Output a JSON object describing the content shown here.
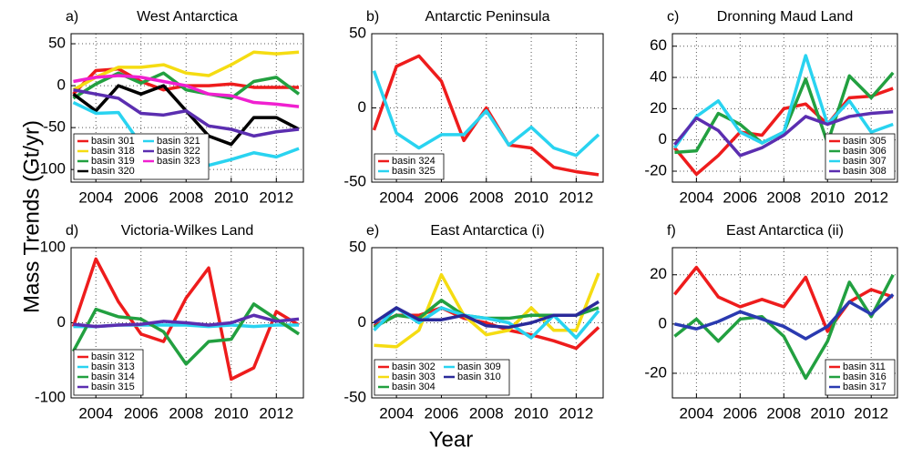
{
  "figure": {
    "ylabel": "Mass Trends (Gt/yr)",
    "xlabel": "Year"
  },
  "chart_data": [
    {
      "type": "line",
      "label": "a)",
      "title": "West Antarctica",
      "x": [
        2003,
        2004,
        2005,
        2006,
        2007,
        2008,
        2009,
        2010,
        2011,
        2012,
        2013
      ],
      "xlim": [
        2002.9,
        2013.2
      ],
      "xticks": [
        2004,
        2006,
        2008,
        2010,
        2012
      ],
      "ylim": [
        -115,
        62
      ],
      "yticks": [
        50,
        0,
        -50,
        -100
      ],
      "grid": true,
      "legend": "lower left",
      "series": [
        {
          "name": "basin 301",
          "color": "#ee1c1c",
          "values": [
            -10,
            18,
            20,
            5,
            -5,
            0,
            0,
            2,
            -2,
            -2,
            -2
          ]
        },
        {
          "name": "basin 318",
          "color": "#f5dc12",
          "values": [
            -5,
            10,
            22,
            22,
            25,
            15,
            12,
            25,
            40,
            38,
            40
          ]
        },
        {
          "name": "basin 319",
          "color": "#22a040",
          "values": [
            -15,
            2,
            15,
            3,
            15,
            -5,
            -10,
            -15,
            5,
            10,
            -10
          ]
        },
        {
          "name": "basin 320",
          "color": "#000000",
          "values": [
            -10,
            -30,
            0,
            -10,
            0,
            -30,
            -60,
            -70,
            -38,
            -38,
            -52
          ]
        },
        {
          "name": "basin 321",
          "color": "#29d3f0",
          "values": [
            -20,
            -33,
            -32,
            -70,
            -65,
            -60,
            -95,
            -88,
            -80,
            -85,
            -75
          ]
        },
        {
          "name": "basin 322",
          "color": "#5b2eb0",
          "values": [
            -5,
            -10,
            -15,
            -33,
            -35,
            -30,
            -48,
            -52,
            -60,
            -55,
            -52
          ]
        },
        {
          "name": "basin 323",
          "color": "#f020d0",
          "values": [
            5,
            10,
            12,
            10,
            5,
            0,
            -10,
            -12,
            -20,
            -22,
            -25
          ]
        }
      ]
    },
    {
      "type": "line",
      "label": "b)",
      "title": "Antarctic Peninsula",
      "x": [
        2003,
        2004,
        2005,
        2006,
        2007,
        2008,
        2009,
        2010,
        2011,
        2012,
        2013
      ],
      "xlim": [
        2002.9,
        2013.2
      ],
      "xticks": [
        2004,
        2006,
        2008,
        2010,
        2012
      ],
      "ylim": [
        -50,
        50
      ],
      "yticks": [
        50,
        0,
        -50
      ],
      "grid": true,
      "legend": "lower left",
      "series": [
        {
          "name": "basin 324",
          "color": "#ee1c1c",
          "values": [
            -15,
            28,
            35,
            18,
            -22,
            0,
            -25,
            -27,
            -40,
            -43,
            -45
          ]
        },
        {
          "name": "basin 325",
          "color": "#29d3f0",
          "values": [
            25,
            -17,
            -27,
            -18,
            -18,
            -2,
            -25,
            -13,
            -27,
            -32,
            -18
          ]
        }
      ]
    },
    {
      "type": "line",
      "label": "c)",
      "title": "Dronning Maud Land",
      "x": [
        2003,
        2004,
        2005,
        2006,
        2007,
        2008,
        2009,
        2010,
        2011,
        2012,
        2013
      ],
      "xlim": [
        2002.9,
        2013.2
      ],
      "xticks": [
        2004,
        2006,
        2008,
        2010,
        2012
      ],
      "ylim": [
        -27,
        68
      ],
      "yticks": [
        60,
        40,
        20,
        0,
        -20
      ],
      "grid": true,
      "legend": "lower right",
      "series": [
        {
          "name": "basin 305",
          "color": "#ee1c1c",
          "values": [
            -5,
            -22,
            -10,
            5,
            3,
            20,
            23,
            10,
            27,
            28,
            33
          ]
        },
        {
          "name": "basin 306",
          "color": "#22a040",
          "values": [
            -8,
            -7,
            17,
            10,
            -2,
            5,
            39,
            -2,
            41,
            27,
            43
          ]
        },
        {
          "name": "basin 307",
          "color": "#29d3f0",
          "values": [
            -5,
            15,
            25,
            5,
            -2,
            5,
            54,
            10,
            25,
            5,
            10
          ]
        },
        {
          "name": "basin 308",
          "color": "#5b2eb0",
          "values": [
            -3,
            14,
            6,
            -10,
            -5,
            3,
            15,
            10,
            15,
            17,
            18
          ]
        }
      ]
    },
    {
      "type": "line",
      "label": "d)",
      "title": "Victoria-Wilkes Land",
      "x": [
        2003,
        2004,
        2005,
        2006,
        2007,
        2008,
        2009,
        2010,
        2011,
        2012,
        2013
      ],
      "xlim": [
        2002.9,
        2013.2
      ],
      "xticks": [
        2004,
        2006,
        2008,
        2010,
        2012
      ],
      "ylim": [
        -100,
        100
      ],
      "yticks": [
        100,
        0,
        -100
      ],
      "grid": true,
      "legend": "lower left",
      "series": [
        {
          "name": "basin 312",
          "color": "#ee1c1c",
          "values": [
            -5,
            85,
            28,
            -15,
            -25,
            33,
            73,
            -75,
            -60,
            15,
            -3
          ]
        },
        {
          "name": "basin 313",
          "color": "#29d3f0",
          "values": [
            -5,
            -5,
            -3,
            -3,
            -3,
            -3,
            -5,
            -3,
            -5,
            -3,
            -3
          ]
        },
        {
          "name": "basin 314",
          "color": "#22a040",
          "values": [
            -38,
            18,
            8,
            5,
            -12,
            -55,
            -25,
            -22,
            25,
            5,
            -15
          ]
        },
        {
          "name": "basin 315",
          "color": "#5b2eb0",
          "values": [
            -2,
            -5,
            -3,
            -2,
            2,
            0,
            -3,
            0,
            10,
            2,
            5
          ]
        }
      ]
    },
    {
      "type": "line",
      "label": "e)",
      "title": "East Antarctica (i)",
      "x": [
        2003,
        2004,
        2005,
        2006,
        2007,
        2008,
        2009,
        2010,
        2011,
        2012,
        2013
      ],
      "xlim": [
        2002.9,
        2013.2
      ],
      "xticks": [
        2004,
        2006,
        2008,
        2010,
        2012
      ],
      "ylim": [
        -50,
        50
      ],
      "yticks": [
        50,
        0,
        -50
      ],
      "grid": true,
      "legend": "lower left",
      "series": [
        {
          "name": "basin 302",
          "color": "#ee1c1c",
          "values": [
            -2,
            5,
            5,
            10,
            3,
            0,
            -5,
            -8,
            -12,
            -17,
            -3
          ]
        },
        {
          "name": "basin 303",
          "color": "#f5dc12",
          "values": [
            -15,
            -16,
            -5,
            32,
            5,
            -8,
            -5,
            10,
            -5,
            -5,
            33
          ]
        },
        {
          "name": "basin 304",
          "color": "#22a040",
          "values": [
            -3,
            5,
            3,
            15,
            5,
            3,
            3,
            5,
            5,
            5,
            10
          ]
        },
        {
          "name": "basin 309",
          "color": "#29d3f0",
          "values": [
            -5,
            10,
            0,
            10,
            5,
            3,
            0,
            -10,
            5,
            -10,
            8
          ]
        },
        {
          "name": "basin 310",
          "color": "#2a2a9a",
          "values": [
            0,
            10,
            2,
            2,
            5,
            -2,
            -3,
            0,
            5,
            5,
            14
          ]
        }
      ]
    },
    {
      "type": "line",
      "label": "f)",
      "title": "East Antarctica (ii)",
      "x": [
        2003,
        2004,
        2005,
        2006,
        2007,
        2008,
        2009,
        2010,
        2011,
        2012,
        2013
      ],
      "xlim": [
        2002.9,
        2013.2
      ],
      "xticks": [
        2004,
        2006,
        2008,
        2010,
        2012
      ],
      "ylim": [
        -30,
        31
      ],
      "yticks": [
        20,
        0,
        -20
      ],
      "grid": true,
      "legend": "lower right",
      "series": [
        {
          "name": "basin 311",
          "color": "#ee1c1c",
          "values": [
            12,
            23,
            11,
            7,
            10,
            7,
            19,
            -3,
            9,
            14,
            11
          ]
        },
        {
          "name": "basin 316",
          "color": "#22a040",
          "values": [
            -5,
            2,
            -7,
            2,
            3,
            -5,
            -22,
            -7,
            17,
            3,
            20
          ]
        },
        {
          "name": "basin 317",
          "color": "#2a3ab0",
          "values": [
            0,
            -2,
            1,
            5,
            2,
            -1,
            -6,
            -1,
            9,
            4,
            12
          ]
        }
      ]
    }
  ]
}
